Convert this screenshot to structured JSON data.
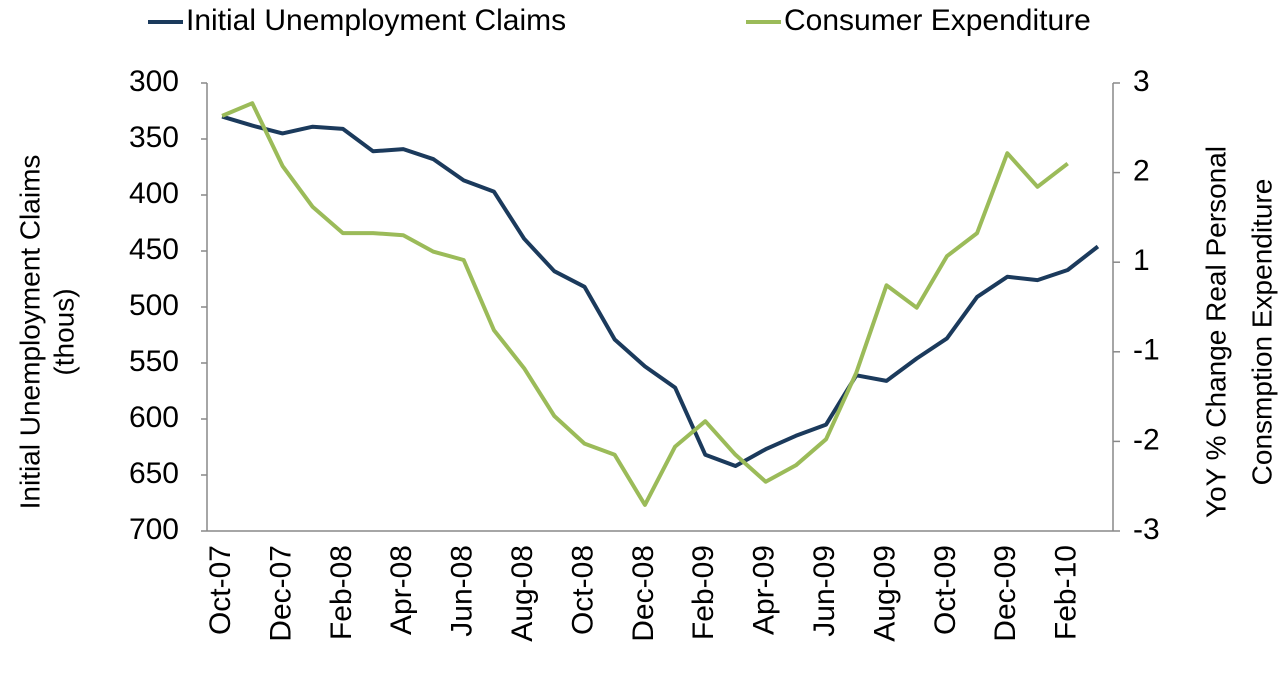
{
  "chart_data": {
    "type": "line",
    "categories": [
      "Oct-07",
      null,
      "Dec-07",
      null,
      "Feb-08",
      null,
      "Apr-08",
      null,
      "Jun-08",
      null,
      "Aug-08",
      null,
      "Oct-08",
      null,
      "Dec-08",
      null,
      "Feb-09",
      null,
      "Apr-09",
      null,
      "Jun-09",
      null,
      "Aug-09",
      null,
      "Oct-09",
      null,
      "Dec-09",
      null,
      "Feb-10",
      null
    ],
    "series": [
      {
        "name": "Initial Unemployment Claims",
        "color": "#1b3a5c",
        "axis": "y",
        "values": [
          330,
          338,
          345,
          339,
          341,
          361,
          359,
          368,
          387,
          397,
          439,
          468,
          482,
          529,
          553,
          572,
          632,
          642,
          627,
          615,
          605,
          561,
          566,
          546,
          528,
          491,
          473,
          476,
          467,
          446
        ]
      },
      {
        "name": "Consumer Expenditure",
        "color": "#9bbb59",
        "axis": "y2",
        "values": [
          2.56,
          2.73,
          1.89,
          1.34,
          0.99,
          0.99,
          0.96,
          0.74,
          0.63,
          -0.31,
          -0.82,
          -1.46,
          -1.83,
          -1.98,
          -2.65,
          -1.87,
          -1.53,
          -1.98,
          -2.34,
          -2.12,
          -1.77,
          -0.88,
          0.29,
          -0.01,
          0.68,
          0.99,
          2.06,
          1.61,
          1.92,
          null
        ]
      }
    ],
    "ylabel": [
      "Initial Unemployment Claims",
      "(thous)"
    ],
    "y2label": [
      "YoY % Change Real Personal",
      "Consmption Expenditure"
    ],
    "ylim": [
      300,
      700
    ],
    "yinverted": true,
    "yticks": [
      300,
      350,
      400,
      450,
      500,
      550,
      600,
      650,
      700
    ],
    "y2lim": [
      -3,
      3
    ],
    "y2ticks": [
      -3,
      {
        "value": -1.8,
        "label": "-2"
      },
      {
        "value": -0.6,
        "label": "-1"
      },
      {
        "value": 0.6,
        "label": "1"
      },
      {
        "value": 1.8,
        "label": "2"
      },
      3
    ],
    "grid": false,
    "legend": "top"
  }
}
